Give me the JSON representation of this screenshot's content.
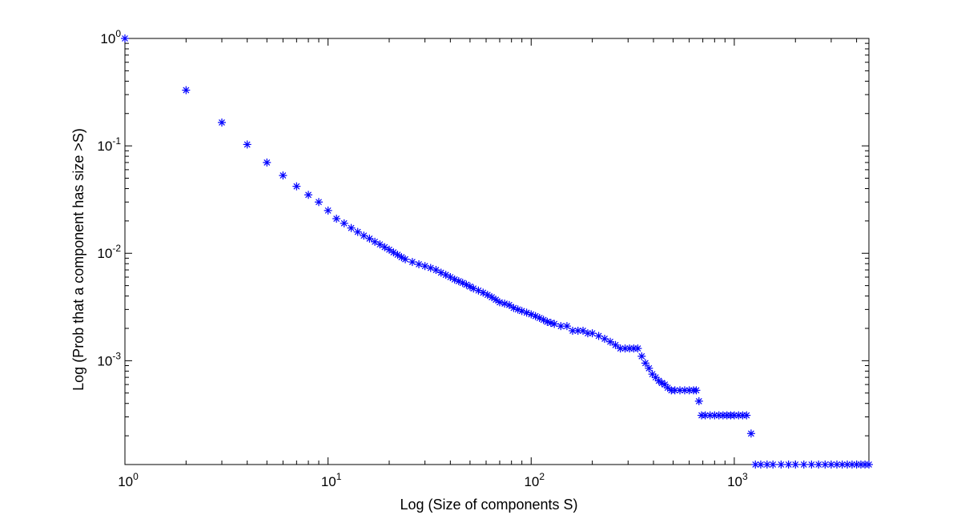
{
  "chart_data": {
    "type": "scatter",
    "title": "",
    "xlabel": "Log (Size of components S)",
    "ylabel": "Log (Prob that a component has size >S)",
    "x_scale": "log",
    "y_scale": "log",
    "xlim": [
      1,
      4600
    ],
    "ylim": [
      0.000108,
      1
    ],
    "grid": false,
    "marker": "asterisk",
    "marker_color": "#0000ff",
    "x_ticks": [
      {
        "value": 1,
        "base": "10",
        "exp": "0"
      },
      {
        "value": 10,
        "base": "10",
        "exp": "1"
      },
      {
        "value": 100,
        "base": "10",
        "exp": "2"
      },
      {
        "value": 1000,
        "base": "10",
        "exp": "3"
      }
    ],
    "y_ticks": [
      {
        "value": 1,
        "base": "10",
        "exp": "0"
      },
      {
        "value": 0.1,
        "base": "10",
        "exp": "-1"
      },
      {
        "value": 0.01,
        "base": "10",
        "exp": "-2"
      },
      {
        "value": 0.001,
        "base": "10",
        "exp": "-3"
      }
    ],
    "series": [
      {
        "points": [
          [
            1,
            1
          ],
          [
            2,
            0.33
          ],
          [
            3,
            0.165
          ],
          [
            4,
            0.103
          ],
          [
            5,
            0.07
          ],
          [
            6,
            0.053
          ],
          [
            7,
            0.042
          ],
          [
            8,
            0.035
          ],
          [
            9,
            0.03
          ],
          [
            10,
            0.025
          ],
          [
            11,
            0.021
          ],
          [
            12,
            0.019
          ],
          [
            13,
            0.0172
          ],
          [
            14,
            0.0158
          ],
          [
            15,
            0.0146
          ],
          [
            16,
            0.0137
          ],
          [
            17,
            0.0128
          ],
          [
            18,
            0.0121
          ],
          [
            19,
            0.0114
          ],
          [
            20,
            0.0108
          ],
          [
            21,
            0.0102
          ],
          [
            22,
            0.0097
          ],
          [
            23,
            0.0092
          ],
          [
            24,
            0.0088
          ],
          [
            26,
            0.0083
          ],
          [
            28,
            0.0079
          ],
          [
            30,
            0.0076
          ],
          [
            32,
            0.0073
          ],
          [
            34,
            0.007
          ],
          [
            36,
            0.0066
          ],
          [
            38,
            0.0063
          ],
          [
            40,
            0.006
          ],
          [
            42,
            0.0057
          ],
          [
            44,
            0.0055
          ],
          [
            46,
            0.0053
          ],
          [
            48,
            0.0051
          ],
          [
            50,
            0.0049
          ],
          [
            52,
            0.0047
          ],
          [
            55,
            0.0045
          ],
          [
            58,
            0.0043
          ],
          [
            61,
            0.0041
          ],
          [
            64,
            0.0039
          ],
          [
            67,
            0.0037
          ],
          [
            70,
            0.0035
          ],
          [
            74,
            0.0034
          ],
          [
            78,
            0.0033
          ],
          [
            82,
            0.0031
          ],
          [
            86,
            0.003
          ],
          [
            90,
            0.0029
          ],
          [
            95,
            0.0028
          ],
          [
            100,
            0.0027
          ],
          [
            105,
            0.0026
          ],
          [
            110,
            0.0025
          ],
          [
            115,
            0.0024
          ],
          [
            120,
            0.0023
          ],
          [
            125,
            0.00225
          ],
          [
            130,
            0.0022
          ],
          [
            140,
            0.0021
          ],
          [
            150,
            0.0021
          ],
          [
            160,
            0.0019
          ],
          [
            170,
            0.0019
          ],
          [
            180,
            0.0019
          ],
          [
            190,
            0.0018
          ],
          [
            200,
            0.0018
          ],
          [
            215,
            0.0017
          ],
          [
            230,
            0.0016
          ],
          [
            245,
            0.0015
          ],
          [
            260,
            0.0014
          ],
          [
            275,
            0.0013
          ],
          [
            290,
            0.0013
          ],
          [
            305,
            0.0013
          ],
          [
            320,
            0.0013
          ],
          [
            335,
            0.0013
          ],
          [
            350,
            0.0011
          ],
          [
            365,
            0.00095
          ],
          [
            380,
            0.00085
          ],
          [
            395,
            0.00075
          ],
          [
            410,
            0.0007
          ],
          [
            425,
            0.00065
          ],
          [
            440,
            0.00062
          ],
          [
            455,
            0.0006
          ],
          [
            470,
            0.00056
          ],
          [
            490,
            0.00053
          ],
          [
            510,
            0.00053
          ],
          [
            540,
            0.00053
          ],
          [
            570,
            0.00053
          ],
          [
            600,
            0.00053
          ],
          [
            630,
            0.00053
          ],
          [
            650,
            0.00053
          ],
          [
            670,
            0.00042
          ],
          [
            690,
            0.00031
          ],
          [
            720,
            0.00031
          ],
          [
            760,
            0.00031
          ],
          [
            800,
            0.00031
          ],
          [
            840,
            0.00031
          ],
          [
            880,
            0.00031
          ],
          [
            920,
            0.00031
          ],
          [
            960,
            0.00031
          ],
          [
            1000,
            0.00031
          ],
          [
            1050,
            0.00031
          ],
          [
            1100,
            0.00031
          ],
          [
            1150,
            0.00031
          ],
          [
            1210,
            0.00021
          ],
          [
            1270,
            0.000108
          ],
          [
            1350,
            0.000108
          ],
          [
            1450,
            0.000108
          ],
          [
            1550,
            0.000108
          ],
          [
            1700,
            0.000108
          ],
          [
            1850,
            0.000108
          ],
          [
            2000,
            0.000108
          ],
          [
            2200,
            0.000108
          ],
          [
            2400,
            0.000108
          ],
          [
            2600,
            0.000108
          ],
          [
            2800,
            0.000108
          ],
          [
            3000,
            0.000108
          ],
          [
            3200,
            0.000108
          ],
          [
            3400,
            0.000108
          ],
          [
            3600,
            0.000108
          ],
          [
            3800,
            0.000108
          ],
          [
            4000,
            0.000108
          ],
          [
            4200,
            0.000108
          ],
          [
            4400,
            0.000108
          ],
          [
            4600,
            0.000108
          ]
        ]
      }
    ]
  }
}
